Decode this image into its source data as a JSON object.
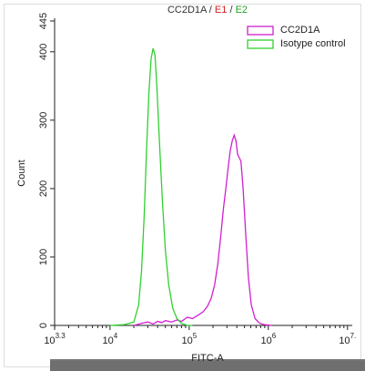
{
  "chart_data": {
    "type": "line",
    "title_parts": [
      {
        "text": "CC2D1A",
        "color": "#333333"
      },
      {
        "text": " / ",
        "color": "#333333"
      },
      {
        "text": "E1",
        "color": "#d62020"
      },
      {
        "text": " / ",
        "color": "#333333"
      },
      {
        "text": "E2",
        "color": "#22a022"
      }
    ],
    "x_label": "FITC-A",
    "y_label": "Count",
    "xscale": "log",
    "xlim": [
      1995.26,
      11481536
    ],
    "xticks": [
      {
        "value": 1995.26,
        "label": "10^3.3"
      },
      {
        "value": 10000,
        "label": "10^4"
      },
      {
        "value": 100000,
        "label": "10^5"
      },
      {
        "value": 1000000,
        "label": "10^6"
      },
      {
        "value": 10000000,
        "label": "10^7."
      }
    ],
    "ylim": [
      0,
      445
    ],
    "yticks": [
      0,
      100,
      200,
      300,
      400,
      445
    ],
    "legend": "upper right",
    "series": [
      {
        "name": "CC2D1A",
        "color": "#d020d0",
        "x": [
          20000,
          25000,
          30000,
          35000,
          40000,
          45000,
          50000,
          60000,
          70000,
          80000,
          95000,
          110000,
          130000,
          150000,
          170000,
          190000,
          210000,
          230000,
          250000,
          270000,
          290000,
          310000,
          330000,
          350000,
          370000,
          390000,
          410000,
          430000,
          450000,
          480000,
          520000,
          560000,
          610000,
          680000,
          780000,
          900000,
          1100000
        ],
        "values": [
          0,
          3,
          5,
          2,
          6,
          4,
          7,
          5,
          8,
          6,
          12,
          10,
          15,
          20,
          28,
          40,
          60,
          90,
          130,
          170,
          200,
          230,
          255,
          270,
          278,
          270,
          250,
          245,
          240,
          200,
          130,
          70,
          30,
          10,
          3,
          1,
          0
        ]
      },
      {
        "name": "Isotype control",
        "color": "#30d030",
        "x": [
          10000,
          15000,
          20000,
          23000,
          25000,
          27000,
          29000,
          31000,
          33000,
          35000,
          37000,
          39000,
          42000,
          46000,
          50000,
          55000,
          62000,
          70000,
          80000,
          95000,
          110000
        ],
        "values": [
          0,
          1,
          5,
          30,
          80,
          160,
          260,
          340,
          390,
          405,
          395,
          350,
          270,
          180,
          110,
          60,
          25,
          10,
          3,
          0,
          0
        ]
      }
    ]
  }
}
